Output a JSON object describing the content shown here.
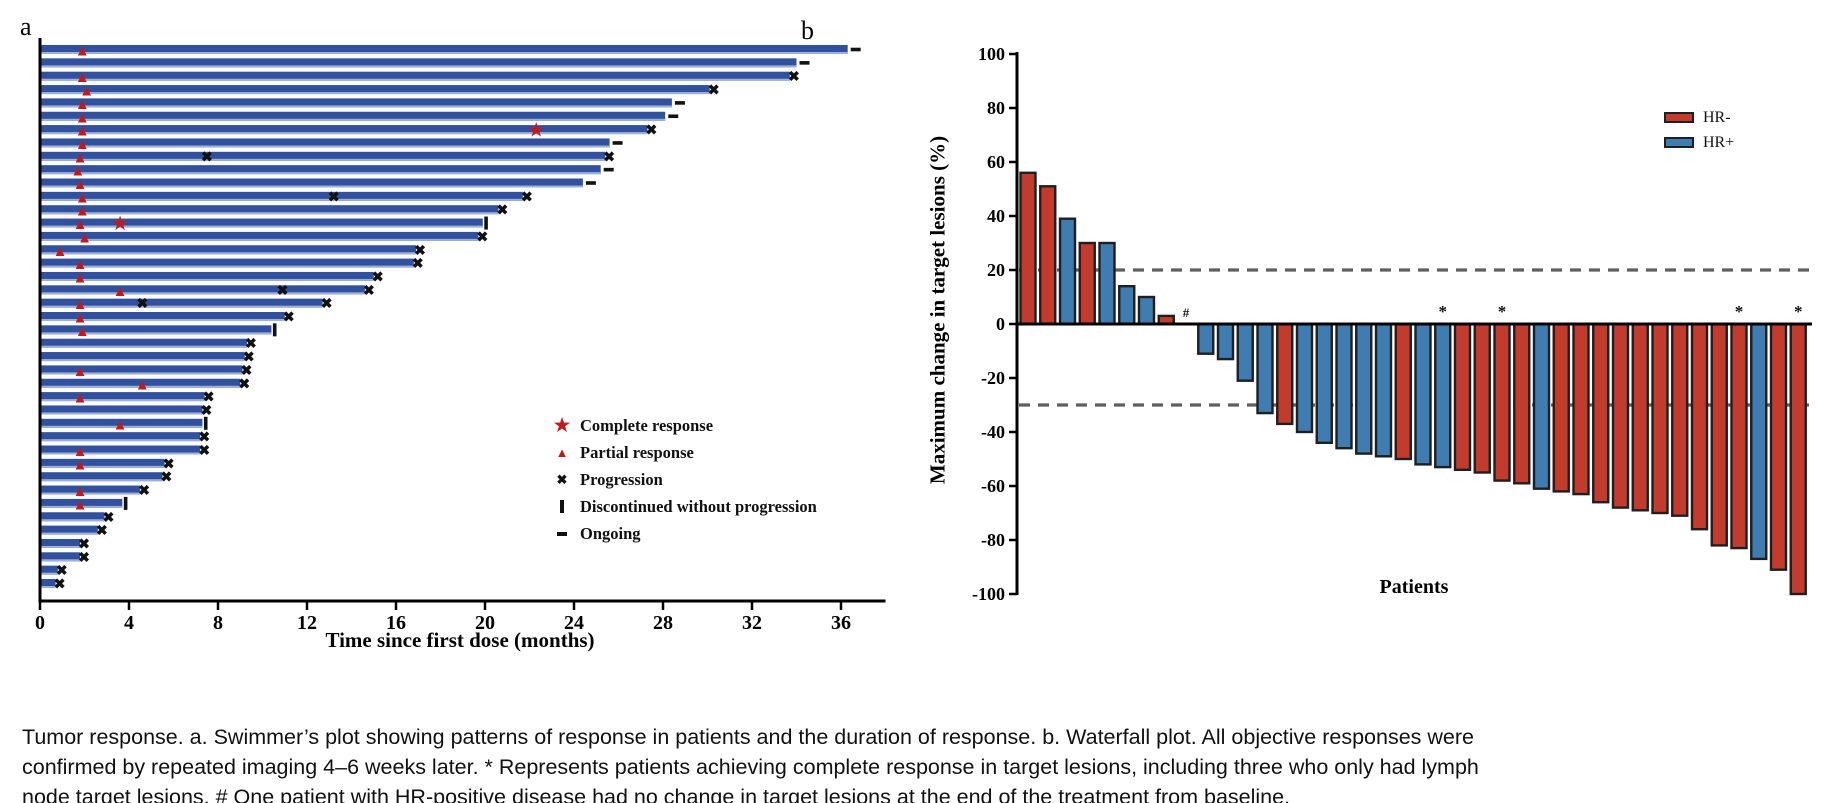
{
  "panel_a": {
    "label": "a",
    "x_axis_title": "Time since first dose (months)",
    "legend": [
      {
        "marker": "star",
        "label": "Complete response"
      },
      {
        "marker": "triangle",
        "label": "Partial response"
      },
      {
        "marker": "cross",
        "label": "Progression"
      },
      {
        "marker": "vbar",
        "label": "Discontinued without progression"
      },
      {
        "marker": "dash",
        "label": "Ongoing"
      }
    ]
  },
  "panel_b": {
    "label": "b",
    "y_axis_title": "Maximum change in target lesions (%)",
    "x_axis_title": "Patients",
    "legend": [
      {
        "label": "HR-",
        "color": "#c23b2c"
      },
      {
        "label": "HR+",
        "color": "#3e7cb1"
      }
    ]
  },
  "colors": {
    "swimmer_bar": "#31519f",
    "swimmer_bar_edge": "#9db1d8",
    "response_red": "#c01a1a",
    "hr_negative": "#c23b2c",
    "hr_positive": "#3e7cb1",
    "bar_outline": "#1f1f1f",
    "dashed_line": "#5f5f5f",
    "axis_black": "#000000"
  },
  "caption": "Tumor response. a. Swimmer’s plot showing patterns of response in patients and the duration of response. b. Waterfall plot. All objective responses were confirmed by repeated imaging 4–6 weeks later. * Represents patients achieving complete response in target lesions, including three who only had lymph node target lesions. # One patient with HR-positive disease had no change in target lesions at the end of the treatment from baseline.",
  "chart_data": [
    {
      "type": "swimmer",
      "xlabel": "Time since first dose (months)",
      "x_ticks": [
        0,
        4,
        8,
        12,
        16,
        20,
        24,
        28,
        32,
        36
      ],
      "xlim": [
        0,
        38
      ],
      "end_marker_meanings": {
        "prog": "Progression",
        "disc": "Discontinued without progression",
        "ongoing": "Ongoing"
      },
      "rows": [
        {
          "duration": 36.3,
          "end": "ongoing",
          "pr": 1.9
        },
        {
          "duration": 34.0,
          "end": "ongoing"
        },
        {
          "duration": 33.7,
          "end": "prog",
          "pr": 1.9
        },
        {
          "duration": 30.1,
          "end": "prog",
          "pr": 2.1
        },
        {
          "duration": 28.4,
          "end": "ongoing",
          "pr": 1.9
        },
        {
          "duration": 28.1,
          "end": "ongoing",
          "pr": 1.9
        },
        {
          "duration": 27.3,
          "end": "prog",
          "pr": 1.9,
          "cr": 22.3
        },
        {
          "duration": 25.6,
          "end": "ongoing",
          "pr": 1.9
        },
        {
          "duration": 25.4,
          "end": "prog",
          "pr": 1.8,
          "mid_prog": 7.5
        },
        {
          "duration": 25.2,
          "end": "ongoing",
          "pr": 1.7
        },
        {
          "duration": 24.4,
          "end": "ongoing",
          "pr": 1.8
        },
        {
          "duration": 21.7,
          "end": "prog",
          "pr": 1.9,
          "mid_prog": 13.2
        },
        {
          "duration": 20.6,
          "end": "prog",
          "pr": 1.9
        },
        {
          "duration": 19.9,
          "end": "disc",
          "pr": 1.8,
          "cr": 3.6
        },
        {
          "duration": 19.7,
          "end": "prog",
          "pr": 2.0
        },
        {
          "duration": 16.9,
          "end": "prog",
          "pr": 0.9
        },
        {
          "duration": 16.8,
          "end": "prog",
          "pr": 1.8
        },
        {
          "duration": 15.0,
          "end": "prog",
          "pr": 1.8
        },
        {
          "duration": 14.6,
          "end": "prog",
          "pr": 3.6,
          "mid_prog": 10.9
        },
        {
          "duration": 12.7,
          "end": "prog",
          "pr": 1.8,
          "mid_prog": 4.6
        },
        {
          "duration": 11.0,
          "end": "prog",
          "pr": 1.8
        },
        {
          "duration": 10.4,
          "end": "disc",
          "pr": 1.9
        },
        {
          "duration": 9.3,
          "end": "prog"
        },
        {
          "duration": 9.2,
          "end": "prog"
        },
        {
          "duration": 9.1,
          "end": "prog",
          "pr": 1.8
        },
        {
          "duration": 9.0,
          "end": "prog",
          "pr": 4.6
        },
        {
          "duration": 7.4,
          "end": "prog",
          "pr": 1.8
        },
        {
          "duration": 7.3,
          "end": "prog"
        },
        {
          "duration": 7.3,
          "end": "disc",
          "pr": 3.6
        },
        {
          "duration": 7.2,
          "end": "prog"
        },
        {
          "duration": 7.2,
          "end": "prog",
          "pr": 1.8
        },
        {
          "duration": 5.6,
          "end": "prog",
          "pr": 1.8
        },
        {
          "duration": 5.5,
          "end": "prog"
        },
        {
          "duration": 4.5,
          "end": "prog",
          "pr": 1.8
        },
        {
          "duration": 3.7,
          "end": "disc",
          "pr": 1.8
        },
        {
          "duration": 2.9,
          "end": "prog"
        },
        {
          "duration": 2.6,
          "end": "prog"
        },
        {
          "duration": 1.8,
          "end": "prog"
        },
        {
          "duration": 1.8,
          "end": "prog"
        },
        {
          "duration": 0.8,
          "end": "prog"
        },
        {
          "duration": 0.7,
          "end": "prog"
        }
      ]
    },
    {
      "type": "waterfall",
      "ylabel": "Maximum change in target lesions (%)",
      "xlabel": "Patients",
      "ylim": [
        -100,
        100
      ],
      "y_ticks": [
        100,
        80,
        60,
        40,
        20,
        0,
        -20,
        -40,
        -60,
        -80,
        -100
      ],
      "reference_lines": [
        20,
        -30
      ],
      "legend": [
        {
          "name": "HR-",
          "color": "#c23b2c"
        },
        {
          "name": "HR+",
          "color": "#3e7cb1"
        }
      ],
      "patients": [
        {
          "value": 56,
          "group": "HR-"
        },
        {
          "value": 51,
          "group": "HR-"
        },
        {
          "value": 39,
          "group": "HR+"
        },
        {
          "value": 30,
          "group": "HR-"
        },
        {
          "value": 30,
          "group": "HR+"
        },
        {
          "value": 14,
          "group": "HR+"
        },
        {
          "value": 10,
          "group": "HR+"
        },
        {
          "value": 3,
          "group": "HR-"
        },
        {
          "value": 0,
          "group": "HR+",
          "mark": "#"
        },
        {
          "value": -11,
          "group": "HR+"
        },
        {
          "value": -13,
          "group": "HR+"
        },
        {
          "value": -21,
          "group": "HR+"
        },
        {
          "value": -33,
          "group": "HR+"
        },
        {
          "value": -37,
          "group": "HR-"
        },
        {
          "value": -40,
          "group": "HR+"
        },
        {
          "value": -44,
          "group": "HR+"
        },
        {
          "value": -46,
          "group": "HR+"
        },
        {
          "value": -48,
          "group": "HR+"
        },
        {
          "value": -49,
          "group": "HR+"
        },
        {
          "value": -50,
          "group": "HR-"
        },
        {
          "value": -52,
          "group": "HR+"
        },
        {
          "value": -53,
          "group": "HR+",
          "mark": "*"
        },
        {
          "value": -54,
          "group": "HR-"
        },
        {
          "value": -55,
          "group": "HR-"
        },
        {
          "value": -58,
          "group": "HR-",
          "mark": "*"
        },
        {
          "value": -59,
          "group": "HR-"
        },
        {
          "value": -61,
          "group": "HR+"
        },
        {
          "value": -62,
          "group": "HR-"
        },
        {
          "value": -63,
          "group": "HR-"
        },
        {
          "value": -66,
          "group": "HR-"
        },
        {
          "value": -68,
          "group": "HR-"
        },
        {
          "value": -69,
          "group": "HR-"
        },
        {
          "value": -70,
          "group": "HR-"
        },
        {
          "value": -71,
          "group": "HR-"
        },
        {
          "value": -76,
          "group": "HR-"
        },
        {
          "value": -82,
          "group": "HR-"
        },
        {
          "value": -83,
          "group": "HR-",
          "mark": "*"
        },
        {
          "value": -87,
          "group": "HR+"
        },
        {
          "value": -91,
          "group": "HR-"
        },
        {
          "value": -100,
          "group": "HR-",
          "mark": "*"
        }
      ]
    }
  ]
}
